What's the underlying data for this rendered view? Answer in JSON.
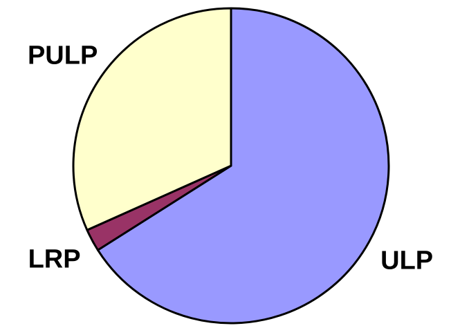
{
  "chart_data": {
    "type": "pie",
    "categories": [
      "ULP",
      "LRP",
      "PULP"
    ],
    "values": [
      66,
      2.3,
      31.7
    ],
    "colors": [
      "#9999ff",
      "#993366",
      "#ffffcc"
    ]
  }
}
